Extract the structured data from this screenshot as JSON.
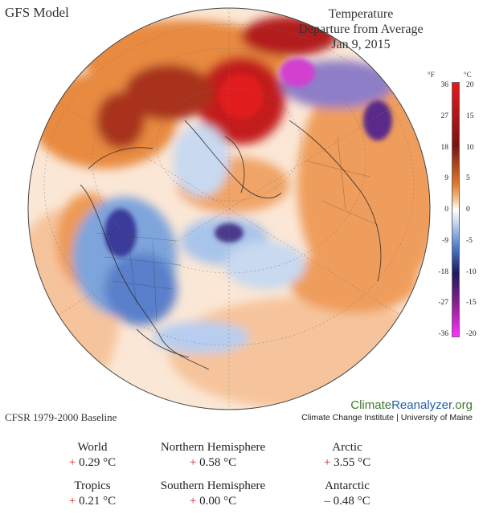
{
  "header": {
    "model": "GFS Model",
    "title_line1": "Temperature",
    "title_line2": "Departure from Average",
    "date": "Jan 9, 2015"
  },
  "footer": {
    "baseline": "CFSR 1979-2000 Baseline",
    "brand": {
      "part1": "Climate",
      "part2": "Reanalyzer",
      "part3": ".org"
    },
    "institute": "Climate Change Institute | University of Maine"
  },
  "legend": {
    "unit_f": "°F",
    "unit_c": "°C",
    "ticks_f": [
      "36",
      "27",
      "18",
      "9",
      "0",
      "-9",
      "-18",
      "-27",
      "-36"
    ],
    "ticks_c": [
      "20",
      "15",
      "10",
      "5",
      "0",
      "-5",
      "-10",
      "-15",
      "-20"
    ],
    "colors": {
      "hot_max": "#e6191f",
      "hot_dark": "#7a1410",
      "warm": "#e07a2a",
      "warm_light": "#f8cfa2",
      "neutral": "#ffffff",
      "cool_light": "#c6d9f0",
      "cool": "#4a7bc8",
      "cold_dark": "#1c1a60",
      "cold_purple": "#8b1f8f",
      "cold_max": "#ff30ff"
    }
  },
  "stats": [
    {
      "region": "World",
      "sign": "+",
      "value": "0.29 °C"
    },
    {
      "region": "Northern Hemisphere",
      "sign": "+",
      "value": "0.58 °C"
    },
    {
      "region": "Arctic",
      "sign": "+",
      "value": "3.55 °C"
    },
    {
      "region": "Tropics",
      "sign": "+",
      "value": "0.21 °C"
    },
    {
      "region": "Southern Hemisphere",
      "sign": "+",
      "value": "0.00 °C"
    },
    {
      "region": "Antarctic",
      "sign": "–",
      "value": "0.48 °C"
    }
  ]
}
